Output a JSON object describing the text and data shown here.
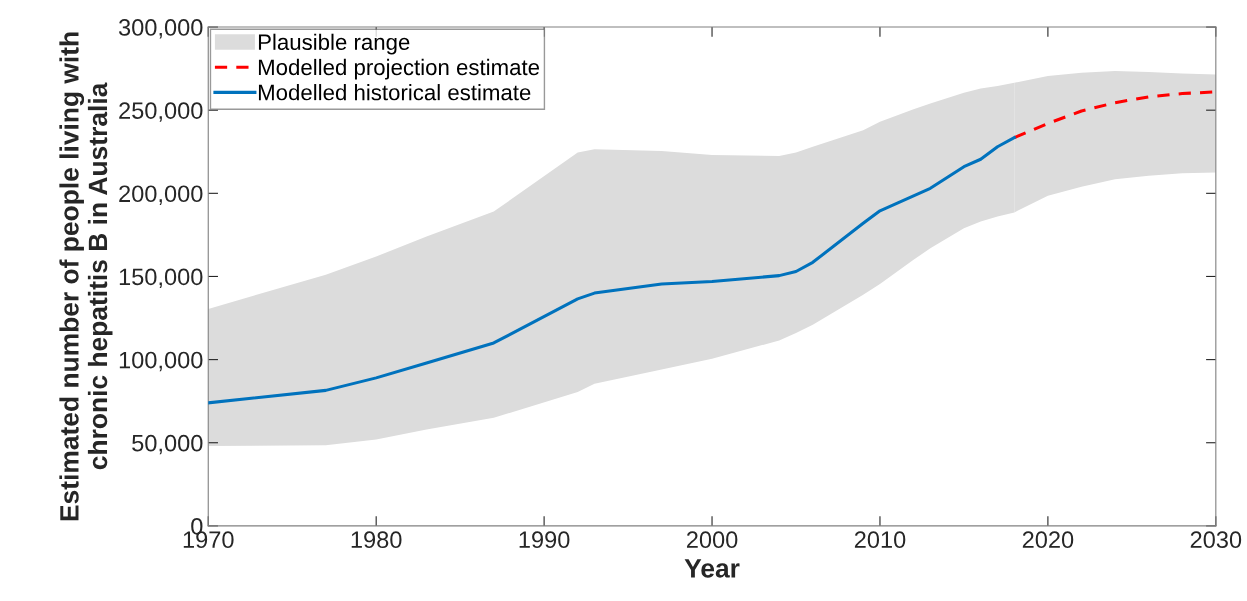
{
  "chart_data": {
    "type": "line",
    "xlabel": "Year",
    "ylabel": "Estimated number of people living with\nchronic hepatitis B in Australia",
    "xlim": [
      1970,
      2030
    ],
    "xticks": [
      1970,
      1980,
      1990,
      2000,
      2010,
      2020,
      2030
    ],
    "ylim": [
      0,
      300000
    ],
    "yticks": [
      0,
      {
        "value": 50000,
        "label": "50,000"
      },
      {
        "value": 100000,
        "label": "100,000"
      },
      {
        "value": 150000,
        "label": "150,000"
      },
      {
        "value": 200000,
        "label": "200,000"
      },
      {
        "value": 250000,
        "label": "250,000"
      },
      {
        "value": 300000,
        "label": "300,000"
      }
    ],
    "grid": false,
    "legend": "top left",
    "series": [
      {
        "name": "Plausible range",
        "type": "area",
        "color": "#dcdcdc"
      },
      {
        "name": "Modelled projection estimate",
        "type": "line",
        "line_style": "dashed",
        "color": "#ff0000",
        "x": [
          2018,
          2020,
          2022,
          2024,
          2026,
          2028,
          2030
        ],
        "values": [
          233500,
          242000,
          249500,
          254500,
          258000,
          260000,
          261000
        ],
        "lower": [
          188500,
          198500,
          204000,
          208500,
          210500,
          212000,
          212500
        ],
        "upper": [
          266500,
          270500,
          272500,
          273500,
          273000,
          272000,
          271500
        ]
      },
      {
        "name": "Modelled historical estimate",
        "type": "line",
        "line_style": "solid",
        "color": "#0072bd",
        "x": [
          1970,
          1977,
          1980,
          1983,
          1987,
          1992,
          1993,
          1997,
          2000,
          2004,
          2005,
          2006,
          2009,
          2010,
          2012,
          2013,
          2015,
          2016,
          2017,
          2018
        ],
        "values": [
          74000,
          81500,
          89000,
          98000,
          110000,
          136500,
          140000,
          145500,
          147000,
          150500,
          153000,
          158500,
          182000,
          189500,
          198500,
          203000,
          216000,
          220500,
          228000,
          233500
        ],
        "lower": [
          48000,
          48500,
          52000,
          58000,
          65000,
          80500,
          85500,
          94000,
          100500,
          111500,
          116000,
          121000,
          139000,
          145500,
          160000,
          167000,
          179000,
          183000,
          186000,
          188500
        ],
        "upper": [
          130500,
          151000,
          162000,
          174000,
          189000,
          224500,
          226500,
          225500,
          223000,
          222500,
          224500,
          228000,
          238000,
          243000,
          250500,
          254000,
          260500,
          263000,
          264500,
          266500
        ]
      }
    ]
  }
}
